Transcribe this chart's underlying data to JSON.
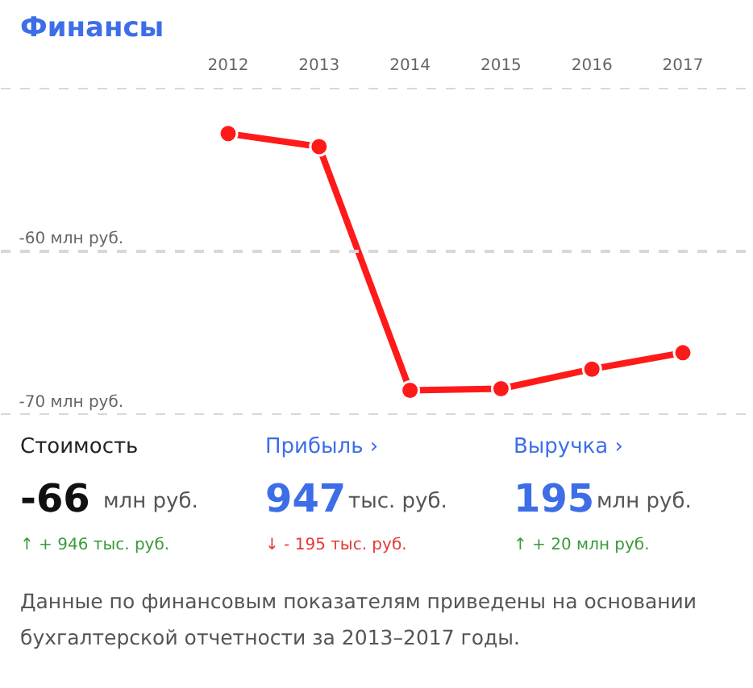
{
  "chart_data": [
    {
      "type": "line",
      "title": "Финансы",
      "categories": [
        "2012",
        "2013",
        "2014",
        "2015",
        "2016",
        "2017"
      ],
      "series": [
        {
          "color": "#ff1a1a",
          "values": [
            -52.8,
            -53.6,
            -68.5,
            -68.4,
            -67.2,
            -66.2
          ]
        }
      ],
      "ylim": [
        -70,
        -50
      ],
      "yticks": [
        {
          "value": -50,
          "label": null
        },
        {
          "value": -60,
          "label": "-60 млн руб."
        },
        {
          "value": -70,
          "label": "-70 млн руб."
        }
      ],
      "grid": "y",
      "marker": "circle",
      "line_style": "solid"
    },
    {
      "type": "other",
      "annotations": [
        "Стоимость",
        "-66",
        "млн руб.",
        "↑ + 946 тыс. руб.",
        "Прибыль  ›",
        "947",
        "тыс. руб.",
        "↓ - 195 тыс. руб.",
        "Выручка  ›",
        "195",
        "млн руб.",
        "↑ + 20 млн руб.",
        "Данные по финансовым показателям приведены на основании бухгалтерской отчетности за 2013–2017 годы."
      ],
      "colors": [
        "#222222",
        "#111111",
        "#555555",
        "#3a9a3a",
        "#3d6ee8",
        "#3d6ee8",
        "#555555",
        "#e53935",
        "#3d6ee8",
        "#3d6ee8",
        "#555555",
        "#3a9a3a",
        "#555555"
      ]
    }
  ]
}
